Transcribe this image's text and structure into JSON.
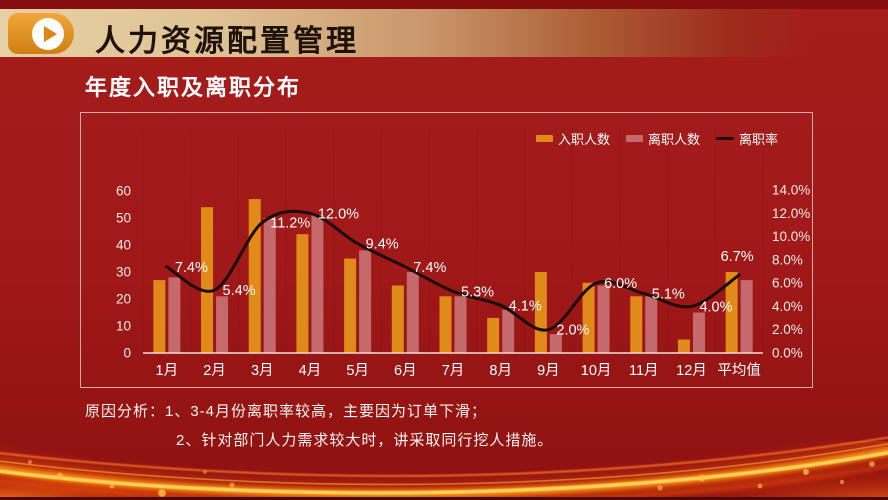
{
  "slide": {
    "header_title": "人力资源配置管理",
    "subtitle": "年度入职及离职分布",
    "analysis_line1": "原因分析：1、3-4月份离职率较高，主要因为订单下滑；",
    "analysis_line2": "2、针对部门人力需求较大时，讲采取同行挖人措施。"
  },
  "colors": {
    "background": "#A01818",
    "top_strip": "#870E0E",
    "banner_tan": "#E7D0A6",
    "bar_hire": "#E08A1A",
    "bar_leave": "#C56A6C",
    "rate_line": "#1C0D08",
    "axis_line": "#EADFD8",
    "text": "#FFFFFF"
  },
  "chart_data": {
    "type": "bar",
    "subtype": "grouped bars with smooth line on secondary axis",
    "title": "年度入职及离职分布",
    "categories": [
      "1月",
      "2月",
      "3月",
      "4月",
      "5月",
      "6月",
      "7月",
      "8月",
      "9月",
      "10月",
      "11月",
      "12月",
      "平均值"
    ],
    "series": [
      {
        "name": "入职人数",
        "type": "bar",
        "axis": "left",
        "color": "#E08A1A",
        "values": [
          27,
          54,
          57,
          44,
          35,
          25,
          21,
          13,
          30,
          26,
          21,
          5,
          30
        ]
      },
      {
        "name": "离职人数",
        "type": "bar",
        "axis": "left",
        "color": "#C56A6C",
        "values": [
          28,
          21,
          50,
          51,
          38,
          30,
          21,
          16,
          7,
          25,
          21,
          15,
          27
        ]
      },
      {
        "name": "离职率",
        "type": "line",
        "axis": "right",
        "color": "#1C0D08",
        "values": [
          7.4,
          5.4,
          11.2,
          12.0,
          9.4,
          7.4,
          5.3,
          4.1,
          2.0,
          6.0,
          5.1,
          4.0,
          6.7
        ],
        "labels": [
          "7.4%",
          "5.4%",
          "11.2%",
          "12.0%",
          "9.4%",
          "7.4%",
          "5.3%",
          "4.1%",
          "2.0%",
          "6.0%",
          "5.1%",
          "4.0%",
          "6.7%"
        ]
      }
    ],
    "left_axis": {
      "min": 0,
      "max": 60,
      "step": 10,
      "ticks": [
        "0",
        "10",
        "20",
        "30",
        "40",
        "50",
        "60"
      ]
    },
    "right_axis": {
      "min": 0,
      "max": 14,
      "step": 2,
      "ticks": [
        "0.0%",
        "2.0%",
        "4.0%",
        "6.0%",
        "8.0%",
        "10.0%",
        "12.0%",
        "14.0%"
      ]
    },
    "legend_position": "top-right",
    "grid": "faint vertical gridlines"
  }
}
